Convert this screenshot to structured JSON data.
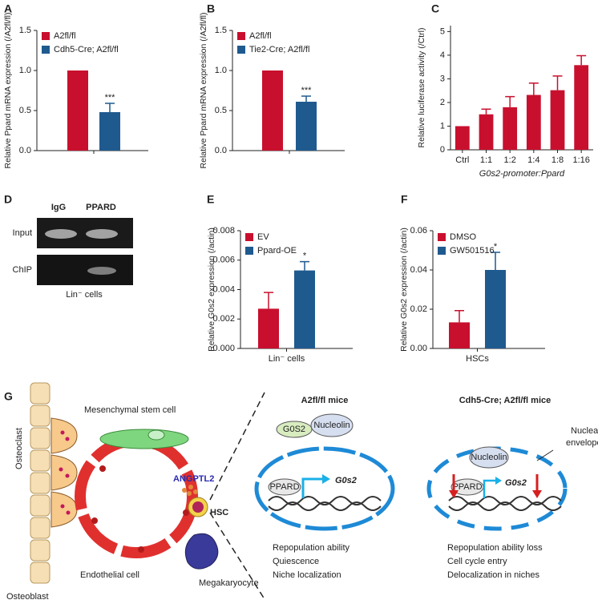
{
  "chart_data": [
    {
      "panel": "A",
      "type": "bar",
      "y_label": "Relative Ppard mRNA expression (/A2fl/fl)",
      "categories": [
        null
      ],
      "ylim": [
        0,
        1.5
      ],
      "yticks": [
        {
          "value": 0,
          "label": "0.0"
        },
        {
          "value": 0.5,
          "label": "0.5"
        },
        {
          "value": 1,
          "label": "1.0"
        },
        {
          "value": 1.5,
          "label": "1.5"
        }
      ],
      "series": [
        {
          "name": "A2fl/fl",
          "color": "#c8102e",
          "values": [
            1.0
          ]
        },
        {
          "name": "Cdh5-Cre; A2fl/fl",
          "color": "#1f5a8f",
          "values": [
            0.48
          ],
          "errors": [
            0.11
          ],
          "significance": [
            "***"
          ]
        }
      ]
    },
    {
      "panel": "B",
      "type": "bar",
      "y_label": "Relative Ppard mRNA expression (/A2fl/fl)",
      "categories": [
        null
      ],
      "ylim": [
        0,
        1.5
      ],
      "yticks": [
        {
          "value": 0,
          "label": "0.0"
        },
        {
          "value": 0.5,
          "label": "0.5"
        },
        {
          "value": 1,
          "label": "1.0"
        },
        {
          "value": 1.5,
          "label": "1.5"
        }
      ],
      "series": [
        {
          "name": "A2fl/fl",
          "color": "#c8102e",
          "values": [
            1.0
          ]
        },
        {
          "name": "Tie2-Cre; A2fl/fl",
          "color": "#1f5a8f",
          "values": [
            0.61
          ],
          "errors": [
            0.07
          ],
          "significance": [
            "***"
          ]
        }
      ]
    },
    {
      "panel": "C",
      "type": "bar",
      "y_label": "Relative luciferase activity (/Ctrl)",
      "x_label": "G0s2-promoter:Ppard",
      "categories": [
        "Ctrl",
        "1:1",
        "1:2",
        "1:4",
        "1:8",
        "1:16"
      ],
      "ylim": [
        0,
        5.25
      ],
      "yticks": [
        0,
        1,
        2,
        3,
        4,
        5
      ],
      "series": [
        {
          "color": "#c8102e",
          "values": [
            1.0,
            1.5,
            1.8,
            2.32,
            2.52,
            3.58
          ],
          "errors": [
            null,
            0.22,
            0.45,
            0.5,
            0.6,
            0.4
          ]
        }
      ]
    },
    {
      "panel": "E",
      "type": "bar",
      "y_label": "Relative G0s2 expression (/actin)",
      "categories": [
        "Lin⁻ cells"
      ],
      "ylim": [
        0,
        0.008
      ],
      "yticks": [
        {
          "value": 0,
          "label": "0.000"
        },
        {
          "value": 0.002,
          "label": "0.002"
        },
        {
          "value": 0.004,
          "label": "0.004"
        },
        {
          "value": 0.006,
          "label": "0.006"
        },
        {
          "value": 0.008,
          "label": "0.008"
        }
      ],
      "series": [
        {
          "name": "EV",
          "color": "#c8102e",
          "values": [
            0.0027
          ],
          "errors": [
            0.0011
          ]
        },
        {
          "name": "Ppard-OE",
          "color": "#1f5a8f",
          "values": [
            0.0053
          ],
          "errors": [
            0.0006
          ],
          "significance": [
            "*"
          ]
        }
      ]
    },
    {
      "panel": "F",
      "type": "bar",
      "y_label": "Relative G0s2 expression (/actin)",
      "categories": [
        "HSCs"
      ],
      "ylim": [
        0,
        0.06
      ],
      "yticks": [
        {
          "value": 0,
          "label": "0.00"
        },
        {
          "value": 0.02,
          "label": "0.02"
        },
        {
          "value": 0.04,
          "label": "0.04"
        },
        {
          "value": 0.06,
          "label": "0.06"
        }
      ],
      "series": [
        {
          "name": "DMSO",
          "color": "#c8102e",
          "values": [
            0.0133
          ],
          "errors": [
            0.006
          ]
        },
        {
          "name": "GW501516",
          "color": "#1f5a8f",
          "values": [
            0.04
          ],
          "errors": [
            0.009
          ],
          "significance": [
            "*"
          ]
        }
      ]
    }
  ],
  "gel": {
    "panel": "D",
    "columns": [
      "IgG",
      "PPARD"
    ],
    "rows": [
      "Input",
      "ChIP"
    ],
    "caption": "Lin⁻ cells"
  },
  "diagram": {
    "panel": "G",
    "osteoclast": "Osteoclast",
    "msc": "Mesenchymal stem cell",
    "angptl2": "ANGPTL2",
    "hsc": "HSC",
    "endothelial": "Endothelial cell",
    "megakaryocyte": "Megakaryocyte",
    "osteoblast": "Osteoblast",
    "left": {
      "title": "A2fl/fl mice",
      "g0s2_protein": "G0S2",
      "nucleolin": "Nucleolin",
      "ppard": "PPARD",
      "gene": "G0s2",
      "outcomes": [
        "Repopulation ability",
        "Quiescence",
        "Niche localization"
      ]
    },
    "right": {
      "title": "Cdh5-Cre; A2fl/fl mice",
      "nucleolin": "Nucleolin",
      "envelope": [
        "Nuclear",
        "envelope"
      ],
      "ppard": "PPARD",
      "gene": "G0s2",
      "outcomes": [
        "Repopulation ability loss",
        "Cell cycle entry",
        "Delocalization in niches"
      ]
    }
  }
}
